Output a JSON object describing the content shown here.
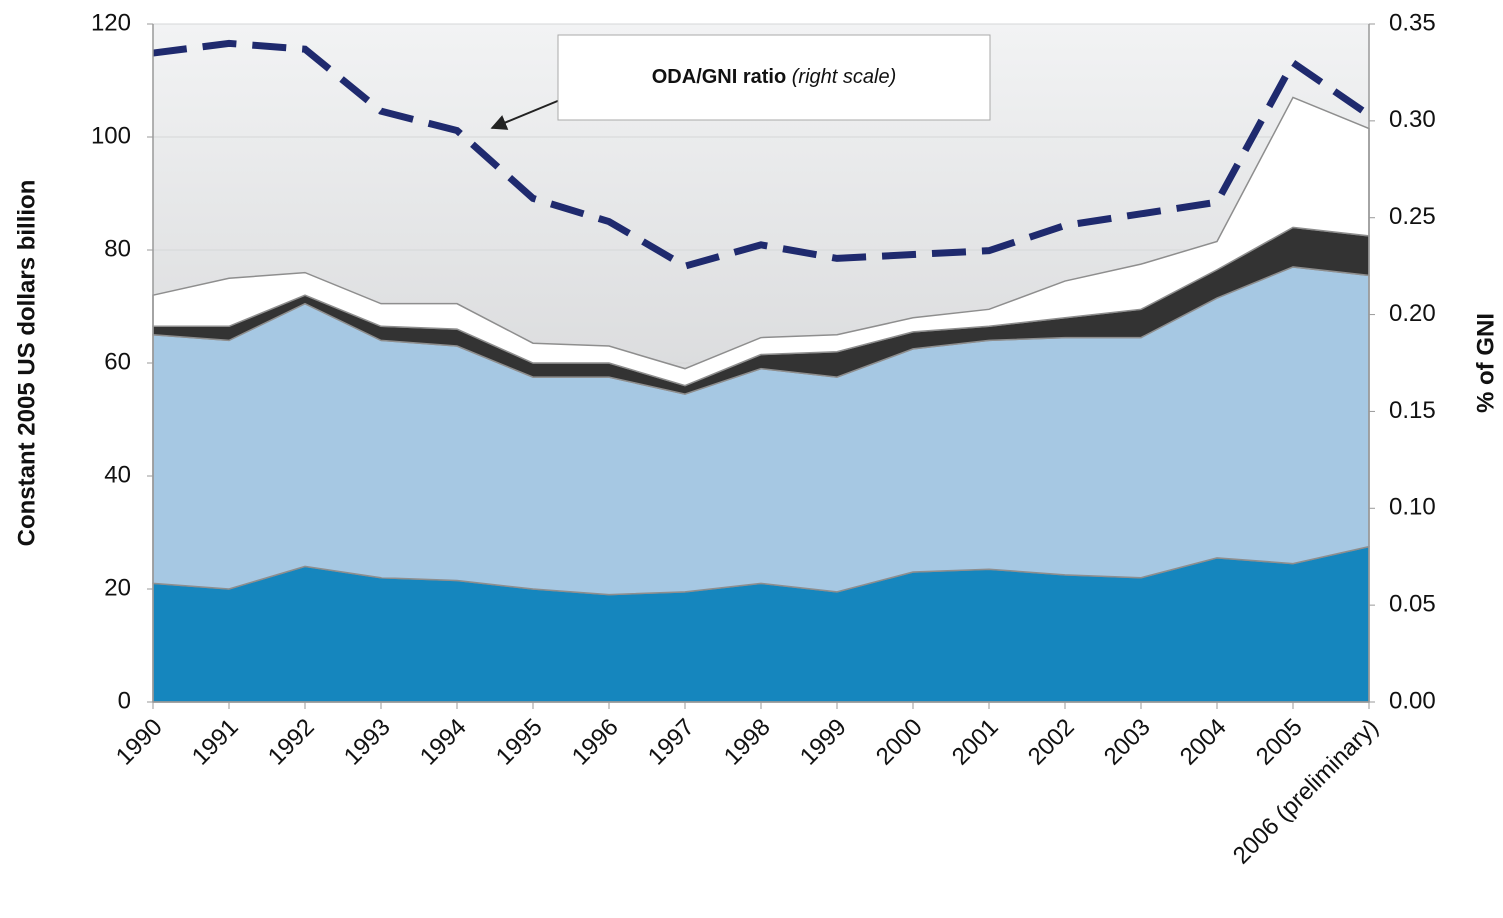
{
  "chart_data": {
    "type": "stacked_area",
    "y_label": "Constant 2005 US dollars billion",
    "y2_label": "% of GNI",
    "annotation": {
      "text": "ODA/GNI ratio",
      "note": "(right scale)"
    },
    "categories": [
      "1990",
      "1991",
      "1992",
      "1993",
      "1994",
      "1995",
      "1996",
      "1997",
      "1998",
      "1999",
      "2000",
      "2001",
      "2002",
      "2003",
      "2004",
      "2005",
      "2006 (preliminary)"
    ],
    "series": [
      {
        "color": "#1586be",
        "values": [
          21,
          20,
          24,
          22,
          21.5,
          20,
          19,
          19.5,
          21,
          19.5,
          23,
          23.5,
          22.5,
          22,
          25.5,
          24.5,
          27.5
        ]
      },
      {
        "color": "#a6c8e3",
        "values": [
          44,
          44,
          46.5,
          42,
          41.5,
          37.5,
          38.5,
          35,
          38,
          38,
          39.5,
          40.5,
          42,
          42.5,
          46,
          52.5,
          48
        ]
      },
      {
        "color": "#333333",
        "values": [
          1.5,
          2.5,
          1.5,
          2.5,
          3,
          2.5,
          2.5,
          1.5,
          2.5,
          4.5,
          3,
          2.5,
          3.5,
          5,
          5,
          7,
          7
        ]
      },
      {
        "color": "#ffffff",
        "values": [
          5.5,
          8.5,
          4,
          4,
          4.5,
          3.5,
          3,
          3,
          3,
          3,
          2.5,
          3,
          6.5,
          8,
          5,
          23,
          19
        ]
      },
      {
        "type": "line",
        "axis": "y2",
        "color": "#1f2a6e",
        "dashed": true,
        "values": [
          0.335,
          0.34,
          0.337,
          0.305,
          0.295,
          0.26,
          0.248,
          0.225,
          0.236,
          0.229,
          0.231,
          0.233,
          0.246,
          0.252,
          0.258,
          0.33,
          0.303
        ]
      }
    ],
    "ylim": [
      0,
      120
    ],
    "yticks": [
      0,
      20,
      40,
      60,
      80,
      100,
      120
    ],
    "y2lim": [
      0,
      0.35
    ],
    "y2ticks": [
      {
        "value": 0,
        "label": "0.00"
      },
      0.05,
      {
        "value": 0.1,
        "label": "0.10"
      },
      0.15,
      {
        "value": 0.2,
        "label": "0.20"
      },
      0.25,
      {
        "value": 0.3,
        "label": "0.30"
      },
      0.35
    ],
    "grid": true
  }
}
